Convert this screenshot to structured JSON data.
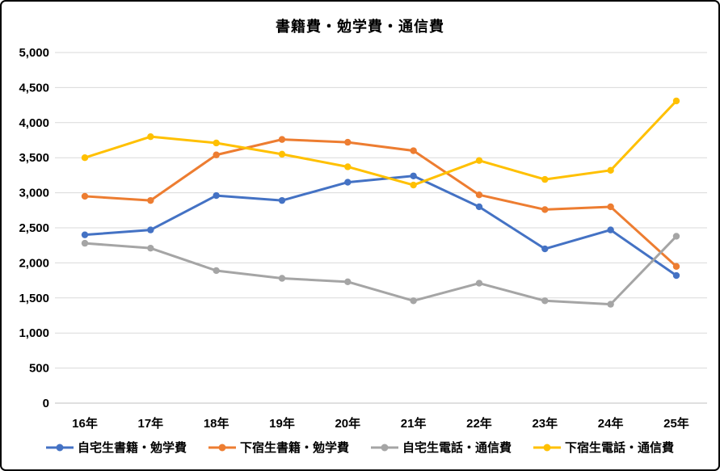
{
  "chart_data": {
    "type": "line",
    "title": "書籍費・勉学費・通信費",
    "categories": [
      "16年",
      "17年",
      "18年",
      "19年",
      "20年",
      "21年",
      "22年",
      "23年",
      "24年",
      "25年"
    ],
    "series": [
      {
        "name": "自宅生書籍・勉学費",
        "color": "#4472C4",
        "values": [
          2400,
          2470,
          2960,
          2890,
          3150,
          3240,
          2800,
          2200,
          2470,
          1820
        ]
      },
      {
        "name": "下宿生書籍・勉学費",
        "color": "#ED7D31",
        "values": [
          2950,
          2890,
          3540,
          3760,
          3720,
          3600,
          2970,
          2760,
          2800,
          1950
        ]
      },
      {
        "name": "自宅生電話・通信費",
        "color": "#A5A5A5",
        "values": [
          2280,
          2210,
          1890,
          1780,
          1730,
          1460,
          1710,
          1460,
          1410,
          2380
        ]
      },
      {
        "name": "下宿生電話・通信費",
        "color": "#FFC000",
        "values": [
          3500,
          3800,
          3710,
          3550,
          3370,
          3110,
          3460,
          3190,
          3320,
          4310
        ]
      }
    ],
    "ylim": [
      0,
      5000
    ],
    "ytick_step": 500,
    "ytick_labels": [
      "0",
      "500",
      "1,000",
      "1,500",
      "2,000",
      "2,500",
      "3,000",
      "3,500",
      "4,000",
      "4,500",
      "5,000"
    ],
    "grid": true,
    "gridline_color": "#D9D9D9",
    "axis_line_color": "#BFBFBF",
    "legend_position": "bottom",
    "marker": "circle"
  }
}
